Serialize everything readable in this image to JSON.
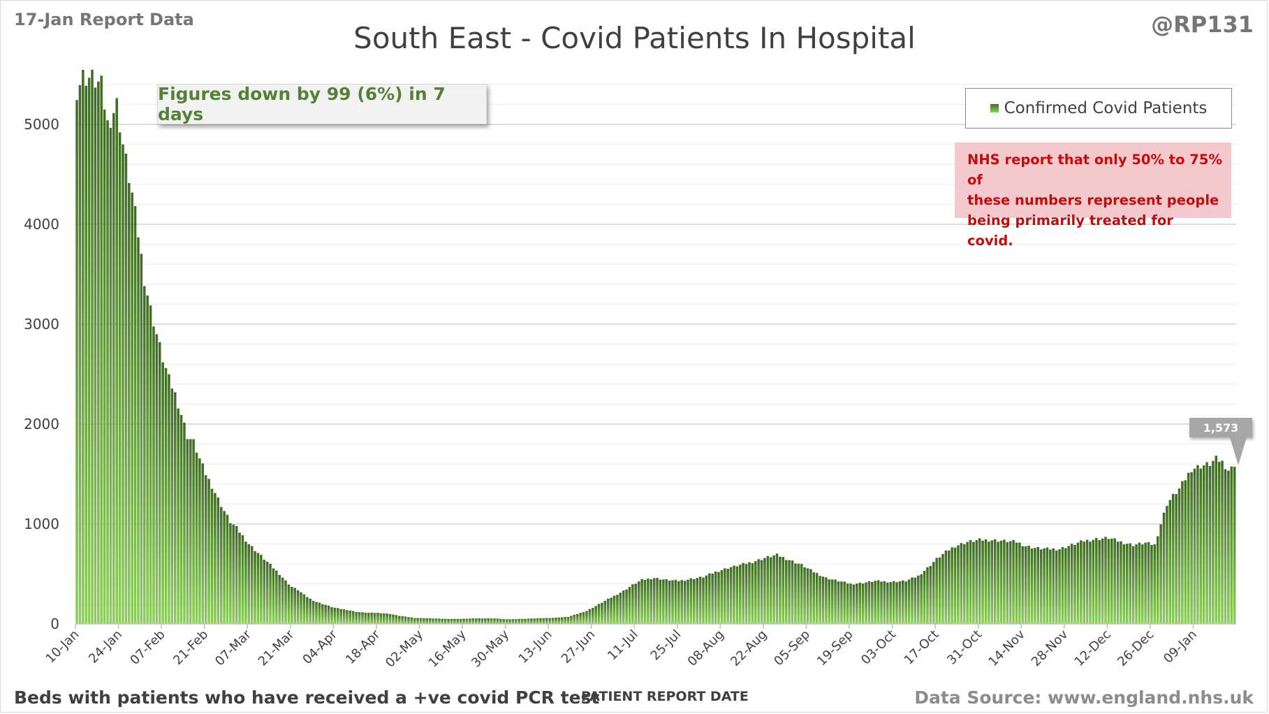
{
  "header": {
    "report_date": "17-Jan Report Data",
    "handle": "@RP131",
    "title": "South East - Covid Patients In Hospital"
  },
  "summary": "Figures down by 99 (6%) in 7 days",
  "legend": {
    "label": "Confirmed Covid Patients"
  },
  "note": {
    "lines": [
      "NHS report that only 50% to 75% of",
      "these numbers represent people",
      "being primarily treated for covid."
    ]
  },
  "callout": {
    "label": "1,573"
  },
  "footer": {
    "left": "Beds with patients who have received a +ve covid PCR test",
    "x_title": "PATIENT REPORT DATE",
    "right": "Data Source: www.england.nhs.uk"
  },
  "colors": {
    "bar_dark": "#3d6b22",
    "bar_light": "#8cd05a",
    "note_text": "#c00000",
    "summary_text": "#548235"
  },
  "chart_data": {
    "type": "bar",
    "title": "South East - Covid Patients In Hospital",
    "xlabel": "PATIENT REPORT DATE",
    "ylabel": "",
    "ylim": [
      0,
      5500
    ],
    "yticks": [
      0,
      1000,
      2000,
      3000,
      4000,
      5000
    ],
    "x_tick_labels": [
      "10-Jan",
      "24-Jan",
      "07-Feb",
      "21-Feb",
      "07-Mar",
      "21-Mar",
      "04-Apr",
      "18-Apr",
      "02-May",
      "16-May",
      "30-May",
      "13-Jun",
      "27-Jun",
      "11-Jul",
      "25-Jul",
      "08-Aug",
      "22-Aug",
      "05-Sep",
      "19-Sep",
      "03-Oct",
      "17-Oct",
      "31-Oct",
      "14-Nov",
      "28-Nov",
      "12-Dec",
      "26-Dec",
      "09-Jan"
    ],
    "tick_interval_days": 14,
    "start_date": "10-Jan",
    "grid": true,
    "legend_position": "top-right",
    "series": [
      {
        "name": "Confirmed Covid Patients",
        "anchors": [
          [
            0,
            5350
          ],
          [
            2,
            5480
          ],
          [
            5,
            5460
          ],
          [
            8,
            5380
          ],
          [
            10,
            5000
          ],
          [
            13,
            5200
          ],
          [
            15,
            4800
          ],
          [
            18,
            4300
          ],
          [
            20,
            3900
          ],
          [
            22,
            3450
          ],
          [
            24,
            3150
          ],
          [
            26,
            2900
          ],
          [
            28,
            2650
          ],
          [
            30,
            2450
          ],
          [
            32,
            2300
          ],
          [
            34,
            2100
          ],
          [
            36,
            1880
          ],
          [
            38,
            1820
          ],
          [
            40,
            1650
          ],
          [
            42,
            1500
          ],
          [
            44,
            1380
          ],
          [
            46,
            1250
          ],
          [
            48,
            1130
          ],
          [
            50,
            1020
          ],
          [
            52,
            960
          ],
          [
            54,
            880
          ],
          [
            56,
            800
          ],
          [
            58,
            740
          ],
          [
            60,
            680
          ],
          [
            62,
            620
          ],
          [
            64,
            560
          ],
          [
            66,
            500
          ],
          [
            68,
            430
          ],
          [
            70,
            370
          ],
          [
            72,
            340
          ],
          [
            74,
            290
          ],
          [
            76,
            250
          ],
          [
            78,
            220
          ],
          [
            80,
            200
          ],
          [
            84,
            160
          ],
          [
            88,
            140
          ],
          [
            91,
            120
          ],
          [
            95,
            110
          ],
          [
            98,
            110
          ],
          [
            102,
            100
          ],
          [
            105,
            80
          ],
          [
            110,
            60
          ],
          [
            115,
            55
          ],
          [
            120,
            50
          ],
          [
            125,
            50
          ],
          [
            130,
            55
          ],
          [
            136,
            55
          ],
          [
            140,
            45
          ],
          [
            145,
            50
          ],
          [
            150,
            55
          ],
          [
            155,
            60
          ],
          [
            160,
            70
          ],
          [
            163,
            100
          ],
          [
            166,
            130
          ],
          [
            169,
            180
          ],
          [
            172,
            230
          ],
          [
            175,
            280
          ],
          [
            178,
            330
          ],
          [
            181,
            390
          ],
          [
            184,
            440
          ],
          [
            188,
            460
          ],
          [
            192,
            440
          ],
          [
            196,
            430
          ],
          [
            200,
            450
          ],
          [
            204,
            470
          ],
          [
            208,
            520
          ],
          [
            212,
            560
          ],
          [
            216,
            590
          ],
          [
            220,
            620
          ],
          [
            224,
            660
          ],
          [
            228,
            690
          ],
          [
            232,
            640
          ],
          [
            236,
            590
          ],
          [
            240,
            520
          ],
          [
            244,
            460
          ],
          [
            248,
            430
          ],
          [
            252,
            400
          ],
          [
            256,
            410
          ],
          [
            260,
            430
          ],
          [
            265,
            420
          ],
          [
            270,
            430
          ],
          [
            274,
            480
          ],
          [
            277,
            560
          ],
          [
            280,
            650
          ],
          [
            283,
            720
          ],
          [
            286,
            780
          ],
          [
            290,
            820
          ],
          [
            294,
            840
          ],
          [
            298,
            840
          ],
          [
            302,
            830
          ],
          [
            306,
            820
          ],
          [
            309,
            780
          ],
          [
            312,
            760
          ],
          [
            316,
            750
          ],
          [
            320,
            750
          ],
          [
            324,
            790
          ],
          [
            328,
            830
          ],
          [
            332,
            850
          ],
          [
            336,
            860
          ],
          [
            340,
            820
          ],
          [
            344,
            790
          ],
          [
            348,
            810
          ],
          [
            351,
            790
          ],
          [
            353,
            1000
          ],
          [
            355,
            1200
          ],
          [
            357,
            1280
          ],
          [
            359,
            1350
          ],
          [
            361,
            1450
          ],
          [
            363,
            1550
          ],
          [
            366,
            1580
          ],
          [
            369,
            1600
          ],
          [
            371,
            1650
          ],
          [
            373,
            1620
          ],
          [
            375,
            1540
          ],
          [
            377,
            1573
          ]
        ]
      }
    ],
    "last_value": 1573,
    "summary_change": -99
  }
}
